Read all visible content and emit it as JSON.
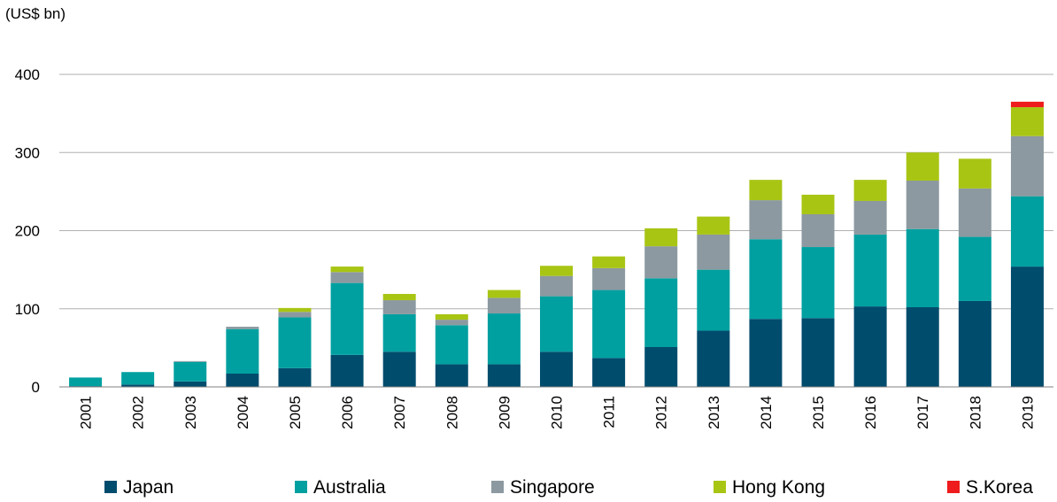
{
  "chart_data": {
    "type": "bar",
    "stacked": true,
    "y_axis_label": "(US$ bn)",
    "categories": [
      "2001",
      "2002",
      "2003",
      "2004",
      "2005",
      "2006",
      "2007",
      "2008",
      "2009",
      "2010",
      "2011",
      "2012",
      "2013",
      "2014",
      "2015",
      "2016",
      "2017",
      "2018",
      "2019"
    ],
    "series": [
      {
        "name": "Japan",
        "color": "#004c6d",
        "values": [
          1,
          3,
          7,
          17,
          24,
          41,
          45,
          29,
          29,
          45,
          37,
          51,
          72,
          87,
          88,
          103,
          102,
          110,
          154
        ]
      },
      {
        "name": "Australia",
        "color": "#00a0a0",
        "values": [
          11,
          16,
          25,
          57,
          65,
          92,
          48,
          50,
          65,
          71,
          87,
          88,
          78,
          102,
          91,
          92,
          100,
          82,
          90
        ]
      },
      {
        "name": "Singapore",
        "color": "#8c99a0",
        "values": [
          0,
          0,
          1,
          3,
          7,
          14,
          18,
          7,
          20,
          26,
          28,
          41,
          45,
          50,
          42,
          43,
          62,
          62,
          77
        ]
      },
      {
        "name": "Hong Kong",
        "color": "#a8c514",
        "values": [
          0,
          0,
          0,
          0,
          5,
          7,
          8,
          7,
          10,
          13,
          15,
          23,
          23,
          26,
          25,
          27,
          36,
          38,
          37
        ]
      },
      {
        "name": "S.Korea",
        "color": "#ee1c1c",
        "values": [
          0,
          0,
          0,
          0,
          0,
          0,
          0,
          0,
          0,
          0,
          0,
          0,
          0,
          0,
          0,
          0,
          0,
          0,
          7
        ]
      }
    ],
    "ylim": [
      0,
      400
    ],
    "yticks": [
      0,
      100,
      200,
      300,
      400
    ],
    "grid": true,
    "legend": "bottom"
  }
}
